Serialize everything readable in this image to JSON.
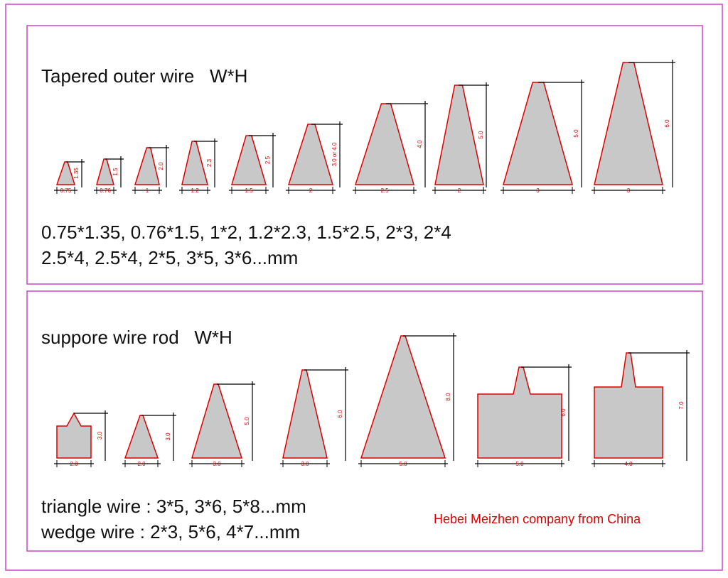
{
  "top": {
    "title": "Tapered outer wire   W*H",
    "profiles": [
      {
        "width": "0.75",
        "height": "1.35"
      },
      {
        "width": "0.76",
        "height": "1.5"
      },
      {
        "width": "1",
        "height": "2.0"
      },
      {
        "width": "1.2",
        "height": "2.3"
      },
      {
        "width": "1.5",
        "height": "2.5"
      },
      {
        "width": "2",
        "height": "3.0 or 4.0"
      },
      {
        "width": "2.5",
        "height": "4.0"
      },
      {
        "width": "2",
        "height": "5.0"
      },
      {
        "width": "3",
        "height": "5.0"
      },
      {
        "width": "3",
        "height": "6.0"
      }
    ],
    "sizes": [
      "0.75*1.35, 0.76*1.5, 1*2, 1.2*2.3, 1.5*2.5, 2*3, 2*4",
      "2.5*4, 2.5*4, 2*5, 3*5, 3*6...mm"
    ]
  },
  "bottom": {
    "title": "suppore wire rod   W*H",
    "profiles": [
      {
        "width": "2.0",
        "height": "3.0"
      },
      {
        "width": "2.0",
        "height": "3.0"
      },
      {
        "width": "3.0",
        "height": "5.0"
      },
      {
        "width": "3.0",
        "height": "6.0"
      },
      {
        "width": "5.0",
        "height": "8.0"
      },
      {
        "width": "5.0",
        "height": "6.0"
      },
      {
        "width": "4.0",
        "height": "7.0"
      }
    ],
    "sizes": [
      "triangle wire : 3*5, 3*6, 5*8...mm",
      "wedge wire : 2*3, 5*6, 4*7...mm"
    ]
  },
  "footer": "Hebei Meizhen company from China"
}
